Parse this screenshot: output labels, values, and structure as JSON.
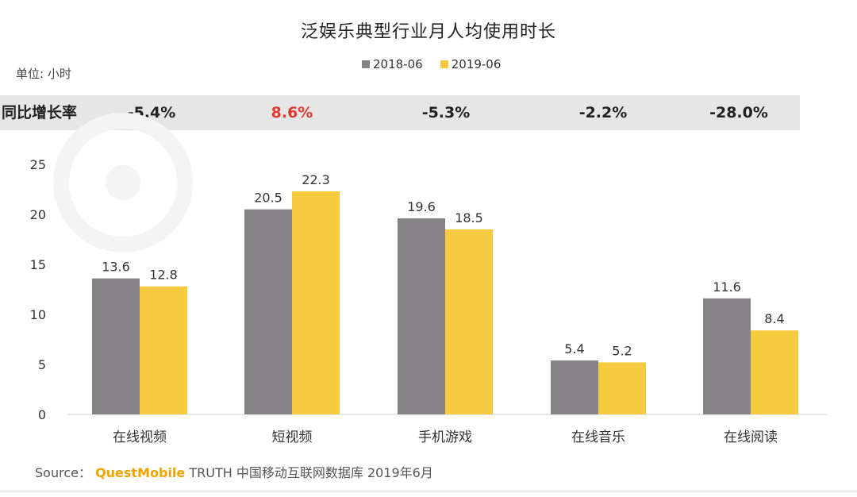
{
  "title": "泛娱乐典型行业月人均使用时长",
  "unit": "单位: 小时",
  "growth": {
    "label": "同比增长率",
    "values": [
      "-5.4%",
      "8.6%",
      "-5.3%",
      "-2.2%",
      "-28.0%"
    ]
  },
  "source": {
    "prefix": "Source：",
    "brand": "QuestMobile",
    "text": "TRUTH 中国移动互联网数据库 2019年6月"
  },
  "colors": {
    "series_2018": "#858385",
    "series_2019": "#f6cb3f",
    "positive": "#e03a2f",
    "brand": "#f0a400"
  },
  "chart_data": {
    "type": "bar",
    "title": "泛娱乐典型行业月人均使用时长",
    "xlabel": "",
    "ylabel": "",
    "categories": [
      "在线视频",
      "短视频",
      "手机游戏",
      "在线音乐",
      "在线阅读"
    ],
    "series": [
      {
        "name": "2018-06",
        "values": [
          13.6,
          20.5,
          19.6,
          5.4,
          11.6
        ]
      },
      {
        "name": "2019-06",
        "values": [
          12.8,
          22.3,
          18.5,
          5.2,
          8.4
        ]
      }
    ],
    "ylim": [
      0,
      25
    ],
    "yticks": [
      0,
      5,
      10,
      15,
      20,
      25
    ],
    "grid": false,
    "legend": "top-center"
  }
}
